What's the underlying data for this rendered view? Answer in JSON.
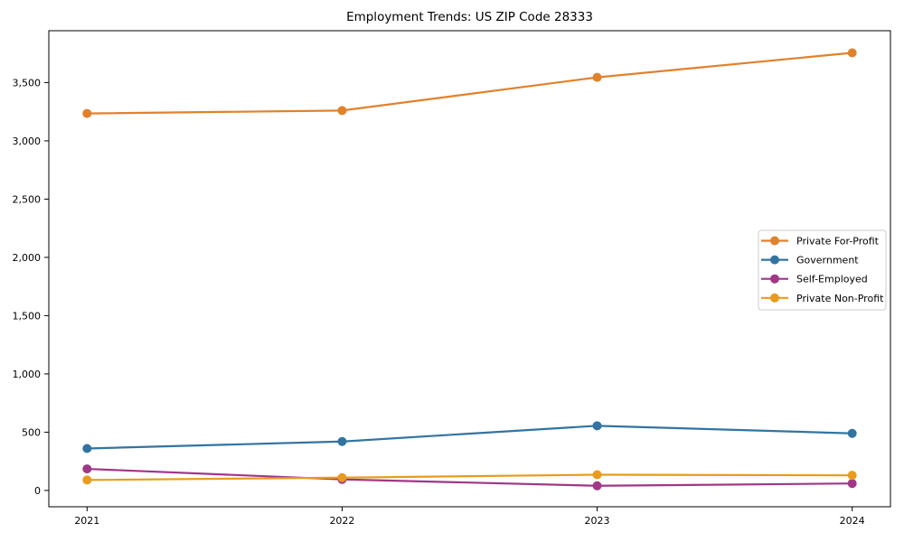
{
  "chart_data": {
    "type": "line",
    "title": "Employment Trends: US ZIP Code 28333",
    "x": [
      2021,
      2022,
      2023,
      2024
    ],
    "x_tick_labels": [
      "2021",
      "2022",
      "2023",
      "2024"
    ],
    "y_ticks": [
      0,
      500,
      1000,
      1500,
      2000,
      2500,
      3000,
      3500
    ],
    "y_tick_labels": [
      "0",
      "500",
      "1,000",
      "1,500",
      "2,000",
      "2,500",
      "3,000",
      "3,500"
    ],
    "xlim": [
      2020.85,
      2024.15
    ],
    "ylim": [
      -140,
      3945
    ],
    "grid": false,
    "legend_position": "center-right",
    "series": [
      {
        "name": "Private For-Profit",
        "color": "#e1812c",
        "values": [
          3235,
          3260,
          3545,
          3755
        ]
      },
      {
        "name": "Government",
        "color": "#3274a1",
        "values": [
          360,
          420,
          555,
          490
        ]
      },
      {
        "name": "Self-Employed",
        "color": "#a03787",
        "values": [
          185,
          95,
          40,
          60
        ]
      },
      {
        "name": "Private Non-Profit",
        "color": "#e89b1e",
        "values": [
          90,
          110,
          135,
          130
        ]
      }
    ],
    "axis_color": "#000000",
    "legend_border_color": "#cccccc",
    "legend_background": "#ffffff"
  }
}
